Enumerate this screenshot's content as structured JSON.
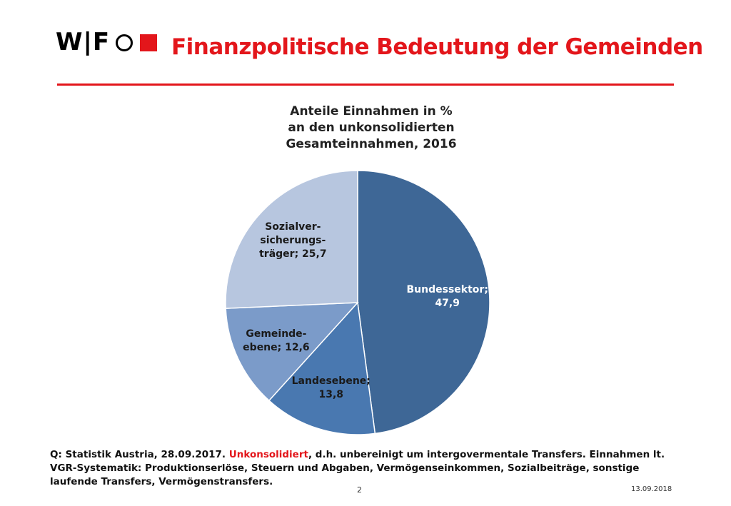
{
  "header": {
    "logo_text": "W|F",
    "title": "Finanzpolitische Bedeutung der Gemeinden"
  },
  "colors": {
    "accent_red": "#e3161b",
    "slice_colors": [
      "#3e6796",
      "#4978b0",
      "#7b9bc9",
      "#b7c6df"
    ],
    "label_colors": [
      "#ffffff",
      "#1a1a1a",
      "#1a1a1a",
      "#1a1a1a"
    ]
  },
  "chart_data": {
    "type": "pie",
    "title_lines": [
      "Anteile Einnahmen in %",
      "an den unkonsolidierten",
      "Gesamteinnahmen, 2016"
    ],
    "slices": [
      {
        "label_lines": [
          "Bundessektor;",
          "47,9"
        ],
        "value": 47.9
      },
      {
        "label_lines": [
          "Landesebene;",
          "13,8"
        ],
        "value": 13.8
      },
      {
        "label_lines": [
          "Gemeinde-",
          "ebene; 12,6"
        ],
        "value": 12.6
      },
      {
        "label_lines": [
          "Sozialver-",
          "sicherungs-",
          "träger; 25,7"
        ],
        "value": 25.7
      }
    ],
    "start_angle": "12 o'clock",
    "direction": "clockwise",
    "legend": "none"
  },
  "footer": {
    "source_prefix": "Q: Statistik Austria, 28.09.2017. ",
    "source_highlight": "Unkonsolidiert",
    "source_rest": ", d.h. unbereinigt um intergovermentale Transfers. Einnahmen lt. VGR-Systematik:  Produktionserlöse, Steuern und Abgaben, Vermögenseinkommen, Sozialbeiträge,  sonstige laufende Transfers, Vermögenstransfers.",
    "page_number": "2",
    "date": "13.09.2018"
  }
}
